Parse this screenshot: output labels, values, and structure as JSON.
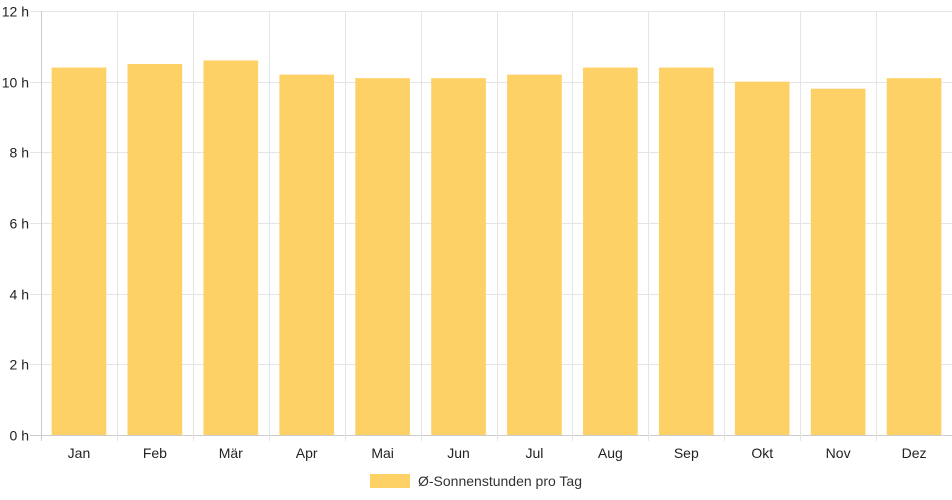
{
  "chart_data": {
    "type": "bar",
    "categories": [
      "Jan",
      "Feb",
      "Mär",
      "Apr",
      "Mai",
      "Jun",
      "Jul",
      "Aug",
      "Sep",
      "Okt",
      "Nov",
      "Dez"
    ],
    "series": [
      {
        "name": "Ø-Sonnenstunden pro Tag",
        "values": [
          10.4,
          10.5,
          10.6,
          10.2,
          10.1,
          10.1,
          10.2,
          10.4,
          10.4,
          10.0,
          9.8,
          10.1
        ]
      }
    ],
    "ylim": [
      0,
      12
    ],
    "y_ticks": [
      0,
      2,
      4,
      6,
      8,
      10,
      12
    ],
    "y_tick_suffix": " h",
    "grid": true,
    "legend_position": "bottom",
    "colors": {
      "bar": "#fdd166",
      "grid": "#e5e5e5",
      "axis": "#cccccc",
      "text": "#222222"
    }
  }
}
